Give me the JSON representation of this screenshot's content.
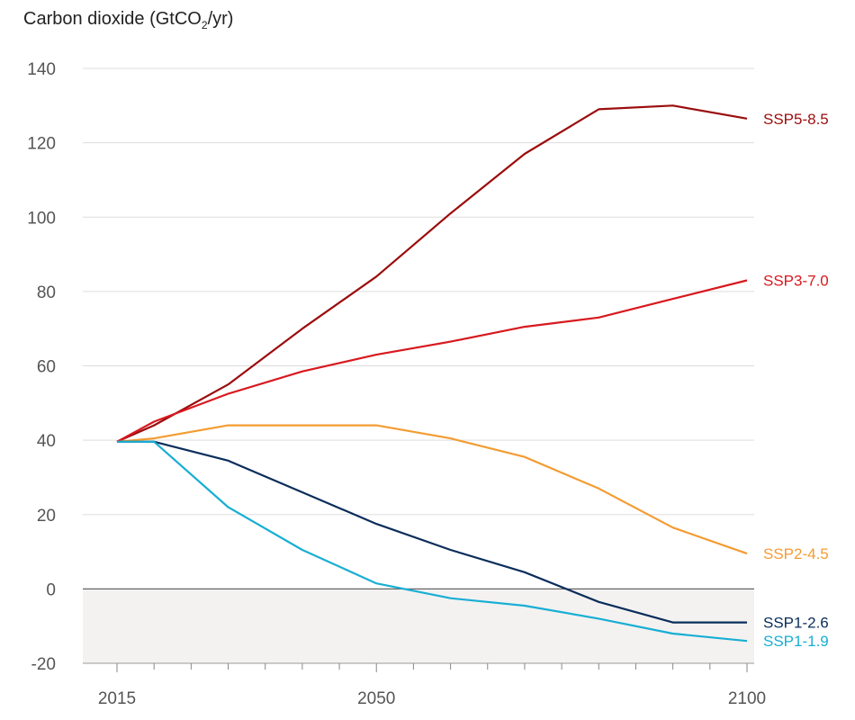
{
  "chart_data": {
    "type": "line",
    "title_prefix": "Carbon dioxide (GtCO",
    "title_sub": "2",
    "title_suffix": "/yr)",
    "xlabel": "",
    "ylabel": "",
    "xlim": [
      2015,
      2100
    ],
    "ylim": [
      -20,
      140
    ],
    "yticks": [
      140,
      120,
      100,
      80,
      60,
      40,
      20,
      0,
      -20
    ],
    "xticks": [
      2015,
      2050,
      2100
    ],
    "grid": true,
    "negative_region_shaded": true,
    "legend": "inline-right",
    "series": [
      {
        "name": "SSP5-8.5",
        "color": "#9b0d0d",
        "points": [
          [
            2015,
            39.6
          ],
          [
            2020,
            44
          ],
          [
            2030,
            55
          ],
          [
            2040,
            70
          ],
          [
            2050,
            84
          ],
          [
            2060,
            101
          ],
          [
            2070,
            117
          ],
          [
            2080,
            129
          ],
          [
            2090,
            130
          ],
          [
            2100,
            126.5
          ]
        ]
      },
      {
        "name": "SSP3-7.0",
        "color": "#d8191f",
        "points": [
          [
            2015,
            39.6
          ],
          [
            2020,
            45
          ],
          [
            2030,
            52.5
          ],
          [
            2040,
            58.5
          ],
          [
            2050,
            63
          ],
          [
            2060,
            66.5
          ],
          [
            2070,
            70.5
          ],
          [
            2080,
            73
          ],
          [
            2090,
            78
          ],
          [
            2100,
            83
          ]
        ]
      },
      {
        "name": "SSP2-4.5",
        "color": "#f39c32",
        "points": [
          [
            2015,
            39.6
          ],
          [
            2020,
            40.5
          ],
          [
            2030,
            44
          ],
          [
            2040,
            44
          ],
          [
            2050,
            44
          ],
          [
            2060,
            40.5
          ],
          [
            2070,
            35.5
          ],
          [
            2080,
            27
          ],
          [
            2090,
            16.5
          ],
          [
            2100,
            9.5
          ]
        ]
      },
      {
        "name": "SSP1-2.6",
        "color": "#0a2d5a",
        "points": [
          [
            2015,
            39.6
          ],
          [
            2020,
            39.6
          ],
          [
            2030,
            34.5
          ],
          [
            2040,
            26
          ],
          [
            2050,
            17.5
          ],
          [
            2060,
            10.5
          ],
          [
            2070,
            4.5
          ],
          [
            2080,
            -3.5
          ],
          [
            2090,
            -9
          ],
          [
            2100,
            -9
          ]
        ]
      },
      {
        "name": "SSP1-1.9",
        "color": "#19aed4",
        "points": [
          [
            2015,
            39.6
          ],
          [
            2020,
            39.6
          ],
          [
            2030,
            22
          ],
          [
            2040,
            10.5
          ],
          [
            2050,
            1.5
          ],
          [
            2060,
            -2.5
          ],
          [
            2070,
            -4.5
          ],
          [
            2080,
            -8
          ],
          [
            2090,
            -12
          ],
          [
            2100,
            -14
          ]
        ]
      }
    ]
  }
}
